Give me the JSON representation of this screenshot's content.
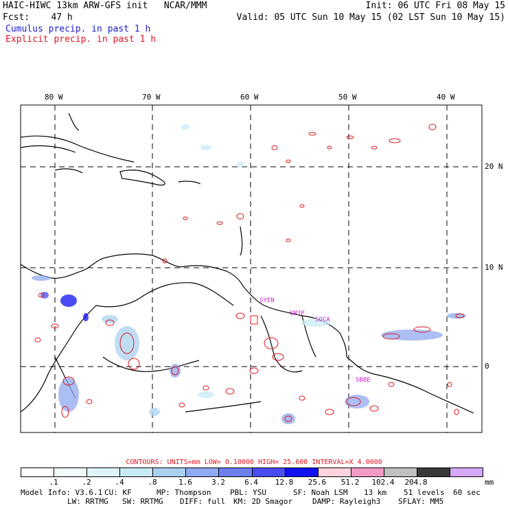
{
  "header": {
    "model": "HAIC-HIWC 13km ARW-GFS init",
    "center": "NCAR/MMM",
    "forecast_label": "Fcst:",
    "forecast_value": "47 h",
    "init": "Init: 06 UTC Fri 08 May 15",
    "valid": "Valid: 05 UTC Sun 10 May 15 (02 LST Sun 10 May 15)"
  },
  "legend": {
    "cumulus": "Cumulus precip. in past 1 h",
    "explicit": "Explicit precip. in past 1 h",
    "cumulus_color": "#2233cc",
    "explicit_color": "#e0141e"
  },
  "map": {
    "lon_labels": [
      "80 W",
      "70 W",
      "60 W",
      "50 W",
      "40 W"
    ],
    "lat_labels": [
      "20 N",
      "10 N",
      "0"
    ],
    "stations": [
      "SYEN",
      "SMJP",
      "SOCA",
      "SBBE"
    ],
    "station_color": "#d020d0"
  },
  "contours": {
    "title": "CONTOURS:",
    "units": "UNITS=mm",
    "low": "LOW= 0.10000",
    "high": "HIGH= 25.600",
    "interval": "INTERVAL=X  4.0000"
  },
  "color_scale": {
    "colors": [
      "#ffffff",
      "#f2fbfc",
      "#dff4f8",
      "#c8ecf5",
      "#aad2f0",
      "#8faaf0",
      "#6e7ff0",
      "#4a4cf0",
      "#1010f0",
      "#fdd3dc",
      "#f29bc8",
      "#c0c0c0",
      "#383838",
      "#d6a8f8"
    ],
    "labels": [
      ".1",
      ".2",
      ".4",
      ".8",
      "1.6",
      "3.2",
      "6.4",
      "12.8",
      "25.6",
      "51.2",
      "102.4",
      "204.8"
    ],
    "unit": "mm"
  },
  "model_info": {
    "line1": [
      "Model Info: V3.6.1",
      "CU: KF",
      "MP: Thompson",
      "PBL: YSU",
      "SF: Noah LSM",
      "13 km",
      "51 levels",
      "60 sec"
    ],
    "line2": [
      "LW: RRTMG",
      "SW: RRTMG",
      "DIFF: full",
      "KM: 2D Smagor",
      "DAMP: Rayleigh3",
      "SFLAY: MM5"
    ]
  }
}
